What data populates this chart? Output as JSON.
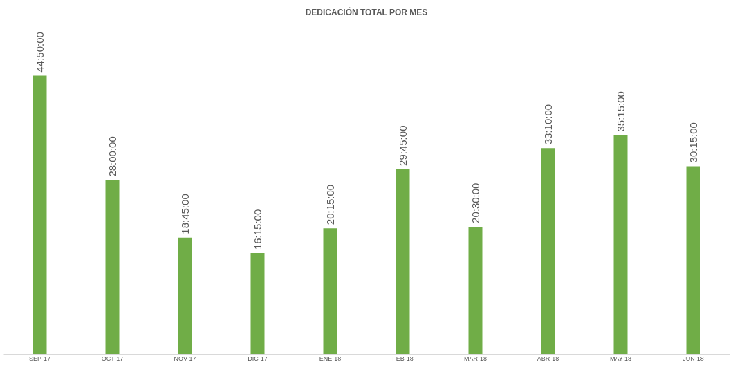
{
  "chart_data": {
    "type": "bar",
    "title": "DEDICACIÓN TOTAL POR MES",
    "categories": [
      "SEP-17",
      "OCT-17",
      "NOV-17",
      "DIC-17",
      "ENE-18",
      "FEB-18",
      "MAR-18",
      "ABR-18",
      "MAY-18",
      "JUN-18"
    ],
    "values": [
      44.8333,
      28,
      18.75,
      16.25,
      20.25,
      29.75,
      20.5,
      33.1667,
      35.25,
      30.25
    ],
    "value_labels": [
      "44:50:00",
      "28:00:00",
      "18:45:00",
      "16:15:00",
      "20:15:00",
      "29:45:00",
      "20:30:00",
      "33:10:00",
      "35:15:00",
      "30:15:00"
    ],
    "color": "#70ad47",
    "grid": false
  }
}
